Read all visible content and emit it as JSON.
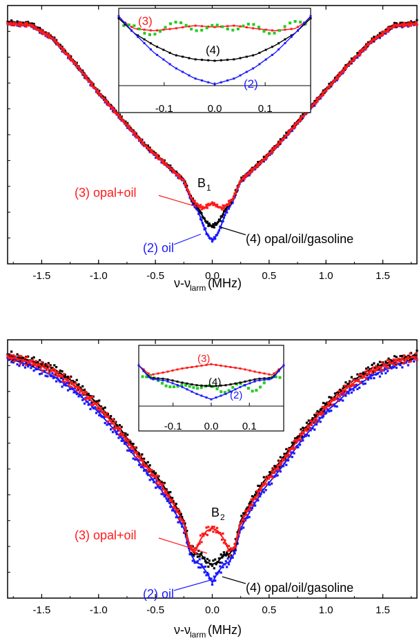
{
  "chart_data": [
    {
      "type": "scatter",
      "panel_label": "B",
      "panel_sub": "1",
      "xlabel_main": "ν-ν",
      "xlabel_sub": "larm",
      "xlabel_unit": " (MHz)",
      "xlim": [
        -1.8,
        1.8
      ],
      "ylim": [
        0,
        1
      ],
      "xticks": [
        -1.5,
        -1.0,
        -0.5,
        0.0,
        0.5,
        1.0,
        1.5
      ],
      "xtick_labels": [
        "-1.5",
        "-1.0",
        "-0.5",
        "0.0",
        "0.5",
        "1.0",
        "1.5"
      ],
      "series": [
        {
          "label": "(2) oil",
          "color": "#1a1aff",
          "x": [
            -1.8,
            -1.6,
            -1.4,
            -1.2,
            -1.0,
            -0.8,
            -0.6,
            -0.45,
            -0.35,
            -0.25,
            -0.18,
            -0.12,
            -0.08,
            -0.04,
            0.0,
            0.04,
            0.08,
            0.12,
            0.18,
            0.25,
            0.35,
            0.45,
            0.6,
            0.8,
            1.0,
            1.2,
            1.4,
            1.6,
            1.8
          ],
          "y": [
            0.93,
            0.925,
            0.87,
            0.77,
            0.66,
            0.56,
            0.46,
            0.4,
            0.36,
            0.32,
            0.24,
            0.2,
            0.15,
            0.11,
            0.09,
            0.11,
            0.15,
            0.2,
            0.24,
            0.32,
            0.36,
            0.4,
            0.47,
            0.57,
            0.67,
            0.77,
            0.86,
            0.92,
            0.93
          ]
        },
        {
          "label": "(4) opal/oil/gasoline",
          "color": "#000000",
          "x": [
            -1.8,
            -1.6,
            -1.4,
            -1.2,
            -1.0,
            -0.8,
            -0.6,
            -0.45,
            -0.35,
            -0.25,
            -0.18,
            -0.12,
            -0.08,
            -0.04,
            0.0,
            0.04,
            0.08,
            0.12,
            0.18,
            0.25,
            0.35,
            0.45,
            0.6,
            0.8,
            1.0,
            1.2,
            1.4,
            1.6,
            1.8
          ],
          "y": [
            0.935,
            0.93,
            0.875,
            0.775,
            0.665,
            0.565,
            0.465,
            0.405,
            0.365,
            0.325,
            0.25,
            0.215,
            0.18,
            0.155,
            0.145,
            0.155,
            0.18,
            0.215,
            0.25,
            0.325,
            0.365,
            0.405,
            0.475,
            0.575,
            0.675,
            0.775,
            0.865,
            0.925,
            0.935
          ]
        },
        {
          "label": "(3) opal+oil",
          "color": "#ff1a1a",
          "x": [
            -1.8,
            -1.6,
            -1.4,
            -1.2,
            -1.0,
            -0.8,
            -0.6,
            -0.45,
            -0.35,
            -0.25,
            -0.18,
            -0.12,
            -0.08,
            -0.04,
            0.0,
            0.04,
            0.08,
            0.12,
            0.18,
            0.25,
            0.35,
            0.45,
            0.6,
            0.8,
            1.0,
            1.2,
            1.4,
            1.6,
            1.8
          ],
          "y": [
            0.93,
            0.925,
            0.872,
            0.772,
            0.662,
            0.562,
            0.462,
            0.402,
            0.362,
            0.322,
            0.25,
            0.225,
            0.215,
            0.225,
            0.235,
            0.225,
            0.215,
            0.225,
            0.25,
            0.322,
            0.362,
            0.402,
            0.472,
            0.572,
            0.672,
            0.772,
            0.862,
            0.922,
            0.93
          ]
        }
      ],
      "annotations": [
        "(3) opal+oil",
        "(4) opal/oil/gasoline",
        "(2) oil"
      ],
      "inset": {
        "xlim": [
          -0.19,
          0.19
        ],
        "ylim": [
          0,
          1
        ],
        "xticks": [
          -0.1,
          0.0,
          0.1
        ],
        "xtick_labels": [
          "-0.1",
          "0.0",
          "0.1"
        ],
        "labels": [
          "(3)",
          "(4)",
          "(2)"
        ],
        "series": [
          {
            "color": "#ff1a1a",
            "x": [
              -0.19,
              -0.16,
              -0.12,
              -0.08,
              -0.04,
              0.0,
              0.04,
              0.08,
              0.12,
              0.16,
              0.19
            ],
            "y": [
              0.92,
              0.78,
              0.75,
              0.78,
              0.82,
              0.8,
              0.82,
              0.78,
              0.75,
              0.78,
              0.92
            ]
          },
          {
            "color": "#22cc22",
            "x": [
              -0.18,
              -0.14,
              -0.1,
              -0.06,
              -0.02,
              0.02,
              0.06,
              0.1,
              0.14,
              0.18
            ],
            "y": [
              0.82,
              0.72,
              0.78,
              0.85,
              0.76,
              0.8,
              0.82,
              0.74,
              0.8,
              0.86
            ]
          },
          {
            "color": "#000000",
            "x": [
              -0.19,
              -0.16,
              -0.12,
              -0.08,
              -0.04,
              0.0,
              0.04,
              0.08,
              0.12,
              0.16,
              0.19
            ],
            "y": [
              0.92,
              0.72,
              0.55,
              0.42,
              0.36,
              0.34,
              0.36,
              0.42,
              0.55,
              0.72,
              0.92
            ]
          },
          {
            "color": "#1a1aff",
            "x": [
              -0.19,
              -0.16,
              -0.12,
              -0.08,
              -0.04,
              0.0,
              0.04,
              0.08,
              0.12,
              0.16,
              0.19
            ],
            "y": [
              0.95,
              0.72,
              0.45,
              0.25,
              0.1,
              0.02,
              0.1,
              0.25,
              0.45,
              0.72,
              0.95
            ]
          }
        ]
      }
    },
    {
      "type": "scatter",
      "panel_label": "B",
      "panel_sub": "2",
      "xlabel_main": "ν-ν",
      "xlabel_sub": "larm",
      "xlabel_unit": " (MHz)",
      "xlim": [
        -1.8,
        1.8
      ],
      "ylim": [
        0,
        1
      ],
      "xticks": [
        -1.5,
        -1.0,
        -0.5,
        0.0,
        0.5,
        1.0,
        1.5
      ],
      "xtick_labels": [
        "-1.5",
        "-1.0",
        "-0.5",
        "0.0",
        "0.5",
        "1.0",
        "1.5"
      ],
      "series": [
        {
          "label": "(2) oil",
          "color": "#1a1aff",
          "x": [
            -1.8,
            -1.6,
            -1.4,
            -1.2,
            -1.0,
            -0.8,
            -0.6,
            -0.45,
            -0.35,
            -0.25,
            -0.2,
            -0.15,
            -0.1,
            -0.05,
            0.0,
            0.05,
            0.1,
            0.15,
            0.2,
            0.25,
            0.35,
            0.45,
            0.6,
            0.8,
            1.0,
            1.2,
            1.4,
            1.6,
            1.8
          ],
          "y": [
            0.93,
            0.9,
            0.86,
            0.8,
            0.72,
            0.62,
            0.5,
            0.42,
            0.35,
            0.27,
            0.18,
            0.14,
            0.13,
            0.1,
            0.06,
            0.1,
            0.13,
            0.14,
            0.18,
            0.27,
            0.35,
            0.42,
            0.5,
            0.62,
            0.72,
            0.8,
            0.86,
            0.9,
            0.93
          ]
        },
        {
          "label": "(4) opal/oil/gasoline",
          "color": "#000000",
          "x": [
            -1.8,
            -1.6,
            -1.4,
            -1.2,
            -1.0,
            -0.8,
            -0.6,
            -0.45,
            -0.35,
            -0.25,
            -0.2,
            -0.15,
            -0.1,
            -0.05,
            0.0,
            0.05,
            0.1,
            0.15,
            0.2,
            0.25,
            0.35,
            0.45,
            0.6,
            0.8,
            1.0,
            1.2,
            1.4,
            1.6,
            1.8
          ],
          "y": [
            0.94,
            0.92,
            0.89,
            0.83,
            0.75,
            0.65,
            0.53,
            0.45,
            0.38,
            0.3,
            0.2,
            0.17,
            0.17,
            0.14,
            0.13,
            0.14,
            0.17,
            0.17,
            0.2,
            0.3,
            0.38,
            0.45,
            0.53,
            0.65,
            0.75,
            0.83,
            0.89,
            0.92,
            0.94
          ]
        },
        {
          "label": "(3) opal+oil",
          "color": "#ff1a1a",
          "x": [
            -1.8,
            -1.6,
            -1.4,
            -1.2,
            -1.0,
            -0.8,
            -0.6,
            -0.45,
            -0.35,
            -0.25,
            -0.2,
            -0.15,
            -0.1,
            -0.05,
            0.0,
            0.05,
            0.1,
            0.15,
            0.2,
            0.25,
            0.35,
            0.45,
            0.6,
            0.8,
            1.0,
            1.2,
            1.4,
            1.6,
            1.8
          ],
          "y": [
            0.935,
            0.915,
            0.88,
            0.82,
            0.74,
            0.64,
            0.52,
            0.44,
            0.37,
            0.29,
            0.2,
            0.18,
            0.23,
            0.26,
            0.27,
            0.26,
            0.23,
            0.18,
            0.2,
            0.29,
            0.37,
            0.44,
            0.52,
            0.64,
            0.74,
            0.82,
            0.88,
            0.915,
            0.935
          ]
        }
      ],
      "annotations": [
        "(3) opal+oil",
        "(4) opal/oil/gasoline",
        "(2) oil"
      ],
      "inset": {
        "xlim": [
          -0.19,
          0.19
        ],
        "ylim": [
          0,
          1
        ],
        "xticks": [
          -0.1,
          0.0,
          0.1
        ],
        "xtick_labels": [
          "-0.1",
          "0.0",
          "0.1"
        ],
        "labels": [
          "(3)",
          "(4)",
          "(2)"
        ],
        "series": [
          {
            "color": "#ff1a1a",
            "x": [
              -0.19,
              -0.16,
              -0.12,
              -0.08,
              -0.04,
              0.0,
              0.04,
              0.08,
              0.12,
              0.16,
              0.19
            ],
            "y": [
              0.72,
              0.55,
              0.6,
              0.66,
              0.7,
              0.74,
              0.7,
              0.66,
              0.6,
              0.55,
              0.72
            ]
          },
          {
            "color": "#22cc22",
            "x": [
              -0.17,
              -0.13,
              -0.09,
              -0.05,
              -0.01,
              0.03,
              0.07,
              0.11,
              0.15,
              0.18
            ],
            "y": [
              0.48,
              0.45,
              0.3,
              0.38,
              0.32,
              0.28,
              0.36,
              0.3,
              0.44,
              0.52
            ]
          },
          {
            "color": "#000000",
            "x": [
              -0.19,
              -0.16,
              -0.12,
              -0.08,
              -0.04,
              0.0,
              0.04,
              0.08,
              0.12,
              0.16,
              0.19
            ],
            "y": [
              0.72,
              0.5,
              0.48,
              0.42,
              0.37,
              0.35,
              0.37,
              0.42,
              0.48,
              0.5,
              0.72
            ]
          },
          {
            "color": "#1a1aff",
            "x": [
              -0.19,
              -0.16,
              -0.12,
              -0.08,
              -0.04,
              0.0,
              0.04,
              0.08,
              0.12,
              0.16,
              0.19
            ],
            "y": [
              0.72,
              0.48,
              0.45,
              0.35,
              0.22,
              0.12,
              0.22,
              0.35,
              0.45,
              0.48,
              0.72
            ]
          }
        ]
      }
    }
  ]
}
